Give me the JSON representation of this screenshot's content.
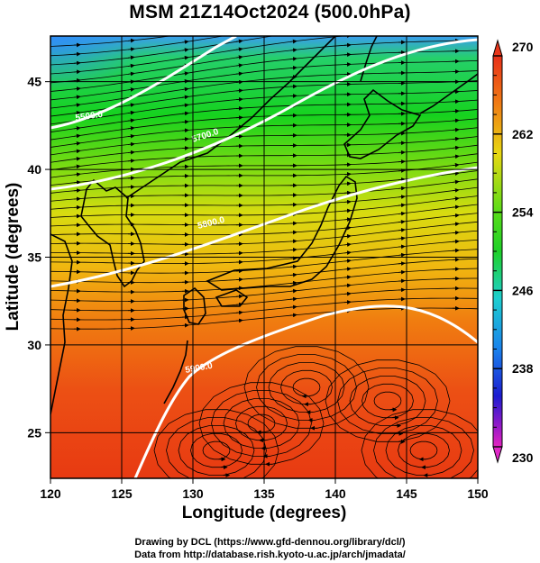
{
  "title": "MSM 21Z14Oct2024 (500.0hPa)",
  "x_axis": {
    "label": "Longitude (degrees)",
    "range": [
      120,
      150
    ],
    "ticks": [
      "120",
      "125",
      "130",
      "135",
      "140",
      "145",
      "150"
    ]
  },
  "y_axis": {
    "label": "Latitude  (degrees)",
    "range": [
      22.4,
      47.6
    ],
    "ticks": [
      "25",
      "30",
      "35",
      "40",
      "45"
    ]
  },
  "colorbar": {
    "min": 230,
    "max": 270,
    "labels": [
      "270",
      "262",
      "254",
      "246",
      "238",
      "230"
    ],
    "unit_hint": "temperature (K)"
  },
  "contours": [
    {
      "label": "5500.0",
      "value": 5500
    },
    {
      "label": "5700.0",
      "value": 5700
    },
    {
      "label": "5800.0",
      "value": 5800
    },
    {
      "label": "5900.0",
      "value": 5900
    }
  ],
  "credits": {
    "line1": "Drawing by DCL (https://www.gfd-dennou.org/library/dcl/)",
    "line2": "Data from http://database.rish.kyoto-u.ac.jp/arch/jmadata/"
  }
}
